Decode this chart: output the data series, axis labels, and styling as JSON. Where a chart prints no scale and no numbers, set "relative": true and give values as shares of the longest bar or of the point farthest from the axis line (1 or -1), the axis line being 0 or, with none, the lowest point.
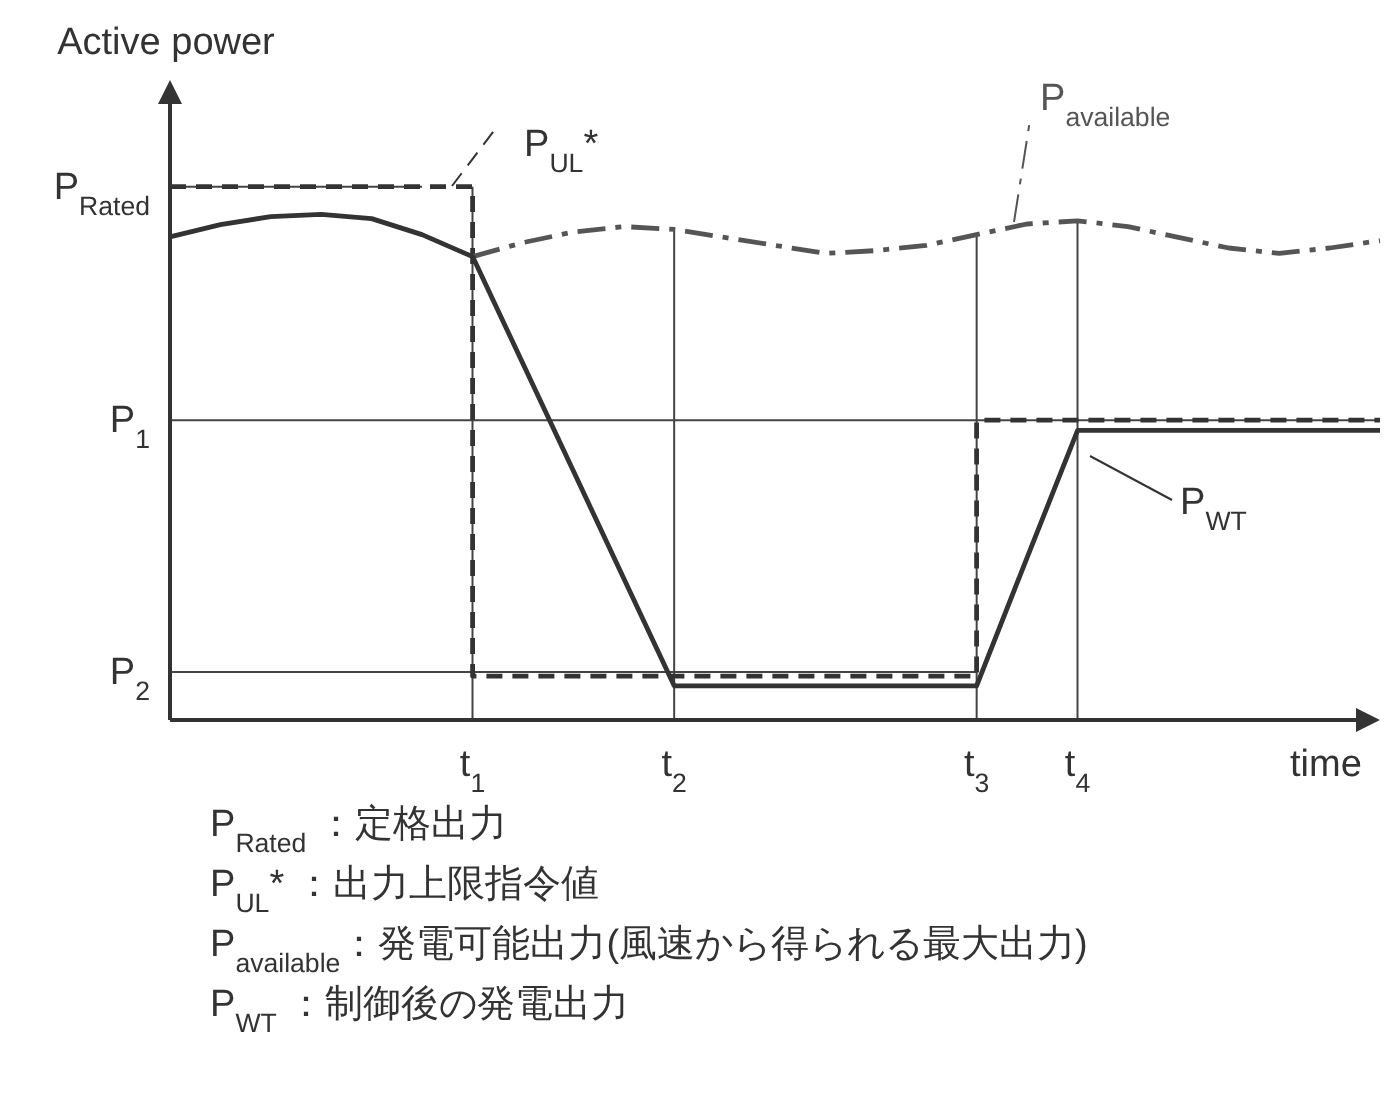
{
  "chart_data": {
    "type": "line",
    "ylabel": "Active power",
    "xlabel": "time",
    "relative": true,
    "categories": [
      null,
      null,
      null,
      null,
      null,
      null,
      "t$_{1}$",
      null,
      null,
      null,
      "t$_{2}$",
      null,
      null,
      null,
      null,
      null,
      "t$_{3}$",
      null,
      "t$_{4}$",
      null,
      null,
      null,
      null,
      null,
      null
    ],
    "grid": "x",
    "marker": "none",
    "series": [
      {
        "name": "P$_{UL}$*",
        "type": "step",
        "color": "#333333",
        "line_style": "dashed",
        "values": [
          1.0,
          1.0,
          1.0,
          1.0,
          1.0,
          1.0,
          0.082,
          0.082,
          0.082,
          0.082,
          0.082,
          0.082,
          0.082,
          0.082,
          0.082,
          0.082,
          0.562,
          0.562,
          0.562,
          0.562,
          0.562,
          0.562,
          0.562,
          0.562,
          0.562
        ]
      },
      {
        "name": "P$_{available}$",
        "color": "#555555",
        "line_style": "dashdot",
        "values": [
          null,
          null,
          null,
          null,
          null,
          null,
          0.869,
          0.895,
          0.915,
          0.925,
          0.92,
          0.905,
          0.89,
          0.875,
          0.88,
          0.89,
          0.91,
          0.93,
          0.936,
          0.925,
          0.905,
          0.885,
          0.875,
          0.885,
          0.899
        ]
      },
      {
        "name": "P$_{WT}$",
        "color": "#333333",
        "line_style": "solid",
        "values": [
          0.906,
          0.929,
          0.944,
          0.948,
          0.94,
          0.91,
          0.869,
          0.668,
          0.467,
          0.265,
          0.064,
          0.064,
          0.064,
          0.064,
          0.064,
          0.064,
          0.064,
          0.304,
          0.543,
          0.543,
          0.543,
          0.543,
          0.543,
          0.543,
          0.543
        ]
      }
    ],
    "ref_lines": [
      {
        "axis": "y",
        "value": 1.0,
        "label": "P$_{Rated}$"
      },
      {
        "axis": "y",
        "value": 0.562,
        "label": "P$_{1}$"
      },
      {
        "axis": "y",
        "value": 0.09,
        "label": "P$_{2}$"
      }
    ],
    "annotations": [
      "P$_{Rated}$ ：定格出力",
      "P$_{UL}$* ：出力上限指令値",
      "P$_{available}$：発電可能出力(風速から得られる最大出力)",
      "P$_{WT}$ ：制御後の発電出力"
    ]
  }
}
